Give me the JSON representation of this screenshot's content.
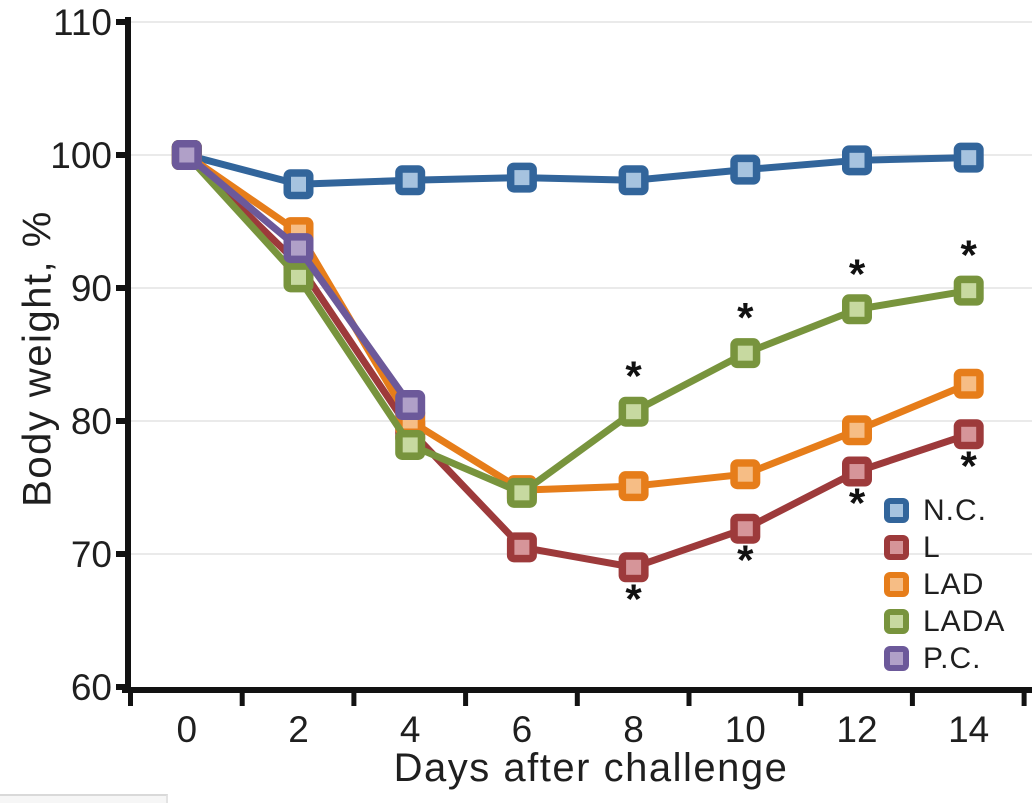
{
  "chart_data": {
    "type": "line",
    "title": "",
    "xlabel": "Days after challenge",
    "ylabel": "Body weight, %",
    "x": [
      0,
      2,
      4,
      6,
      8,
      10,
      12,
      14
    ],
    "xtick_labels": [
      "0",
      "2",
      "4",
      "6",
      "8",
      "10",
      "12",
      "14"
    ],
    "yticks": [
      60,
      70,
      80,
      90,
      100,
      110
    ],
    "ylim": [
      60,
      110
    ],
    "xlim_days": [
      -1.05,
      15.1
    ],
    "grid": "horizontal-light-gray",
    "legend_position": "inside-middle-right",
    "marker_shape": "rounded-square-two-tone",
    "axis_color": "#121212",
    "gridline_color": "#eaeaea",
    "significance_symbol": "*",
    "series": [
      {
        "name": "N.C.",
        "color": "#32659b",
        "marker_fill": "#a6c3df",
        "values": [
          100,
          97.8,
          98.1,
          98.3,
          98.1,
          98.9,
          99.6,
          99.8
        ],
        "significant_days": [],
        "asterisk_position": "none"
      },
      {
        "name": "L",
        "color": "#9d3a3b",
        "marker_fill": "#d69599",
        "values": [
          100,
          91.8,
          79.3,
          70.5,
          69,
          71.9,
          76.2,
          79
        ],
        "significant_days": [
          8,
          10,
          12,
          14
        ],
        "asterisk_position": "below"
      },
      {
        "name": "LAD",
        "color": "#e67d1a",
        "marker_fill": "#f6bd85",
        "values": [
          100,
          94.2,
          80,
          74.8,
          75.1,
          76,
          79.3,
          82.8
        ],
        "significant_days": [],
        "asterisk_position": "none"
      },
      {
        "name": "LADA",
        "color": "#78943d",
        "marker_fill": "#c7d9a0",
        "values": [
          100,
          90.8,
          78.2,
          74.6,
          80.7,
          85.1,
          88.4,
          89.8
        ],
        "significant_days": [
          8,
          10,
          12,
          14
        ],
        "asterisk_position": "above"
      },
      {
        "name": "P.C.",
        "color": "#6c599a",
        "marker_fill": "#b0a0c8",
        "values": [
          100,
          93,
          81.2,
          null,
          null,
          null,
          null,
          null
        ],
        "significant_days": [],
        "asterisk_position": "none"
      }
    ]
  }
}
